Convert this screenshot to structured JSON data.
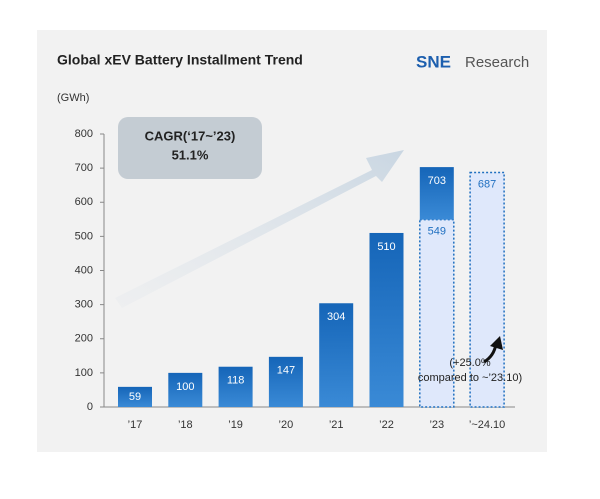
{
  "chart_data": {
    "type": "bar",
    "title": "Global xEV Battery Installment Trend",
    "brand": [
      "SNE",
      "Research"
    ],
    "unit": "(GWh)",
    "categories": [
      "’17",
      "’18",
      "’19",
      "’20",
      "’21",
      "’22",
      "’23",
      "’~24.10"
    ],
    "values": [
      59,
      100,
      118,
      147,
      304,
      510,
      703,
      687
    ],
    "partial_values": [
      null,
      null,
      null,
      null,
      null,
      null,
      549,
      null
    ],
    "bar_styles": [
      "solid",
      "solid",
      "solid",
      "solid",
      "solid",
      "solid",
      "solid",
      "dashed"
    ],
    "color": "#1f6fc0",
    "dashed_color": "#dfe8fb",
    "ylim": [
      0,
      800
    ],
    "yticks": [
      0,
      100,
      200,
      300,
      400,
      500,
      600,
      700,
      800
    ],
    "cagr_label": "CAGR(‘17~’23)",
    "cagr_value": "51.1%",
    "note": [
      "(+25.0%",
      "compared to ~’23.10)"
    ]
  }
}
